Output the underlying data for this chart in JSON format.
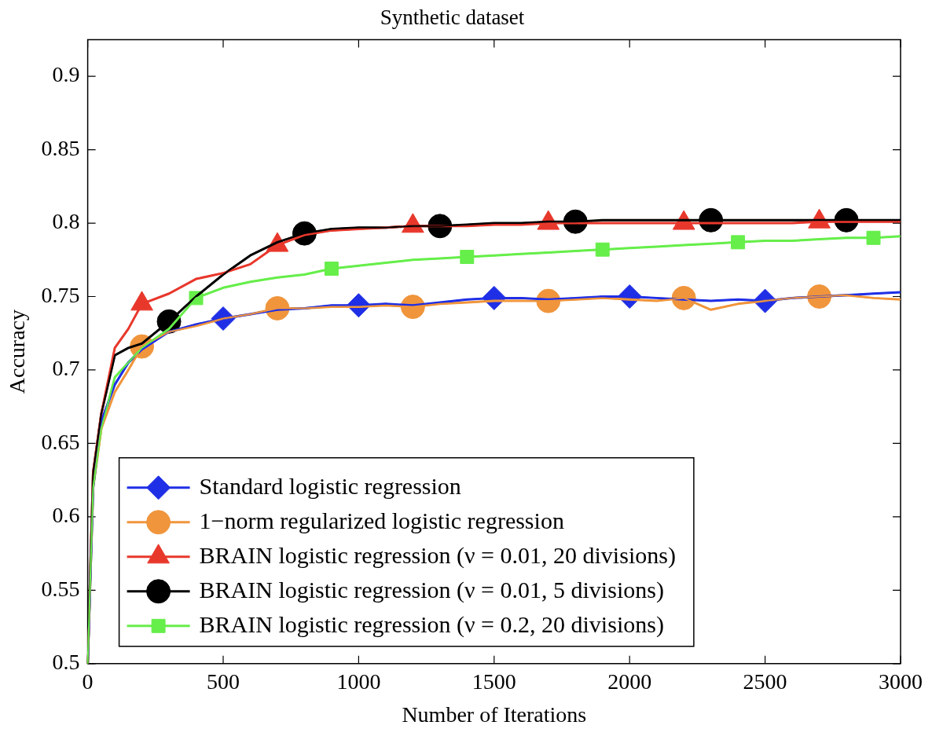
{
  "chart_data": {
    "type": "line",
    "title": "Synthetic dataset",
    "xlabel": "Number of Iterations",
    "ylabel": "Accuracy",
    "x": [
      0,
      20,
      50,
      100,
      150,
      200,
      300,
      400,
      500,
      600,
      700,
      800,
      900,
      1000,
      1100,
      1200,
      1300,
      1400,
      1500,
      1600,
      1700,
      1800,
      1900,
      2000,
      2100,
      2200,
      2300,
      2400,
      2500,
      2600,
      2700,
      2800,
      2900,
      3000
    ],
    "series": [
      {
        "name": "Standard logistic regression",
        "color": "#1f2fe6",
        "values": [
          0.5,
          0.62,
          0.665,
          0.69,
          0.705,
          0.714,
          0.726,
          0.731,
          0.735,
          0.738,
          0.741,
          0.742,
          0.744,
          0.744,
          0.745,
          0.744,
          0.746,
          0.748,
          0.749,
          0.749,
          0.748,
          0.749,
          0.75,
          0.75,
          0.749,
          0.748,
          0.747,
          0.748,
          0.747,
          0.749,
          0.75,
          0.751,
          0.752,
          0.753
        ]
      },
      {
        "name": "1−norm regularized logistic regression",
        "color": "#f0953c",
        "values": [
          0.5,
          0.62,
          0.66,
          0.685,
          0.7,
          0.716,
          0.726,
          0.73,
          0.735,
          0.738,
          0.742,
          0.742,
          0.743,
          0.743,
          0.744,
          0.743,
          0.745,
          0.746,
          0.747,
          0.747,
          0.747,
          0.748,
          0.749,
          0.748,
          0.747,
          0.749,
          0.741,
          0.745,
          0.747,
          0.749,
          0.75,
          0.751,
          0.749,
          0.748
        ]
      },
      {
        "name": "BRAIN logistic regression (ν = 0.01, 20 divisions)",
        "color": "#e8382c",
        "values": [
          0.5,
          0.63,
          0.67,
          0.715,
          0.728,
          0.745,
          0.752,
          0.762,
          0.766,
          0.772,
          0.785,
          0.792,
          0.795,
          0.796,
          0.797,
          0.798,
          0.798,
          0.798,
          0.799,
          0.799,
          0.8,
          0.8,
          0.8,
          0.8,
          0.8,
          0.8,
          0.8,
          0.8,
          0.8,
          0.8,
          0.801,
          0.801,
          0.801,
          0.801
        ]
      },
      {
        "name": "BRAIN logistic regression (ν = 0.01, 5 divisions)",
        "color": "#000000",
        "values": [
          0.5,
          0.63,
          0.67,
          0.71,
          0.715,
          0.718,
          0.733,
          0.75,
          0.765,
          0.778,
          0.787,
          0.793,
          0.796,
          0.797,
          0.797,
          0.798,
          0.798,
          0.799,
          0.8,
          0.8,
          0.801,
          0.801,
          0.802,
          0.802,
          0.802,
          0.802,
          0.802,
          0.802,
          0.802,
          0.802,
          0.802,
          0.802,
          0.802,
          0.802
        ]
      },
      {
        "name": "BRAIN logistic regression (ν = 0.2, 20 divisions)",
        "color": "#66ee4a",
        "values": [
          0.5,
          0.62,
          0.66,
          0.695,
          0.705,
          0.715,
          0.728,
          0.749,
          0.756,
          0.76,
          0.763,
          0.765,
          0.769,
          0.771,
          0.773,
          0.775,
          0.776,
          0.777,
          0.778,
          0.779,
          0.78,
          0.781,
          0.782,
          0.783,
          0.784,
          0.785,
          0.786,
          0.787,
          0.788,
          0.788,
          0.789,
          0.79,
          0.79,
          0.791
        ]
      },
      {
        "type": "scatter",
        "color": "#1f2fe6",
        "marker": "diamond",
        "x": [
          500,
          1000,
          1500,
          2000,
          2500
        ],
        "values": [
          0.735,
          0.744,
          0.749,
          0.75,
          0.747
        ]
      },
      {
        "type": "scatter",
        "color": "#f0953c",
        "marker": "circle",
        "x": [
          200,
          700,
          1200,
          1700,
          2200,
          2700
        ],
        "values": [
          0.716,
          0.742,
          0.743,
          0.747,
          0.749,
          0.75
        ]
      },
      {
        "type": "scatter",
        "color": "#e8382c",
        "marker": "triangle",
        "x": [
          200,
          700,
          1200,
          1700,
          2200,
          2700
        ],
        "values": [
          0.745,
          0.785,
          0.798,
          0.8,
          0.8,
          0.801
        ]
      },
      {
        "type": "scatter",
        "color": "#000000",
        "marker": "circle",
        "x": [
          300,
          800,
          1300,
          1800,
          2300,
          2800
        ],
        "values": [
          0.733,
          0.793,
          0.798,
          0.801,
          0.802,
          0.802
        ]
      },
      {
        "type": "scatter",
        "color": "#66ee4a",
        "marker": "square",
        "x": [
          400,
          900,
          1400,
          1900,
          2400,
          2900
        ],
        "values": [
          0.749,
          0.769,
          0.777,
          0.782,
          0.787,
          0.79
        ]
      }
    ],
    "xlim": [
      0,
      3000
    ],
    "xticks": [
      0,
      500,
      1000,
      1500,
      2000,
      2500,
      3000
    ],
    "ylim": [
      0.5,
      0.925
    ],
    "yticks": [
      0.5,
      0.55,
      0.6,
      0.65,
      0.7,
      0.75,
      0.8,
      0.85,
      0.9
    ],
    "grid": false,
    "legend": "bottom left",
    "line_style": "solid"
  }
}
